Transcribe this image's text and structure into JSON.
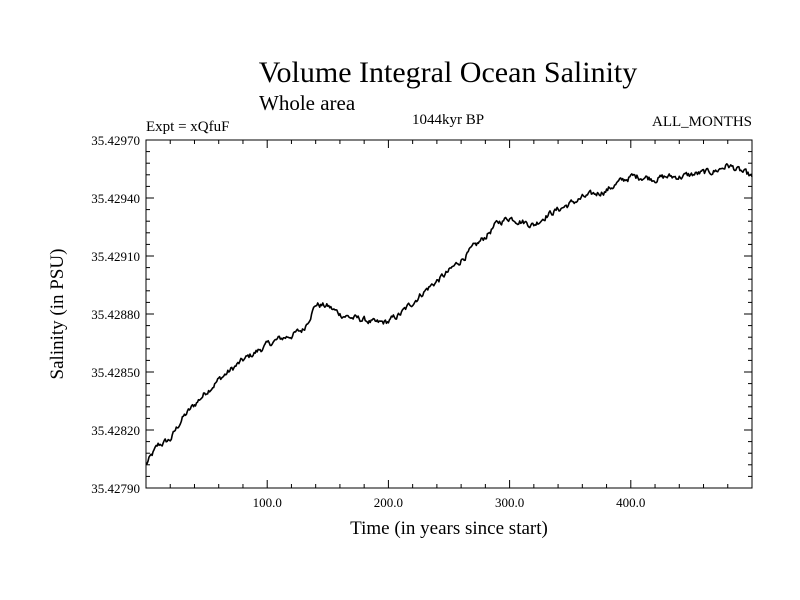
{
  "chart_data": {
    "type": "line",
    "title": "Volume Integral Ocean Salinity",
    "subtitle": "Whole area",
    "experiment": "Expt = xQfuF",
    "period": "1044kyr BP",
    "months": "ALL_MONTHS",
    "xlabel": "Time (in years since start)",
    "ylabel": "Salinity (in PSU)",
    "xlim": [
      0,
      500
    ],
    "ylim": [
      35.4279,
      35.4297
    ],
    "x_ticks": [
      {
        "value": 100,
        "label": "100.0"
      },
      {
        "value": 200,
        "label": "200.0"
      },
      {
        "value": 300,
        "label": "300.0"
      },
      {
        "value": 400,
        "label": "400.0"
      }
    ],
    "y_ticks": [
      {
        "value": 35.4279,
        "label": "35.42790"
      },
      {
        "value": 35.4282,
        "label": "35.42820"
      },
      {
        "value": 35.4285,
        "label": "35.42850"
      },
      {
        "value": 35.4288,
        "label": "35.42880"
      },
      {
        "value": 35.4291,
        "label": "35.42910"
      },
      {
        "value": 35.4294,
        "label": "35.42940"
      },
      {
        "value": 35.4297,
        "label": "35.42970"
      }
    ],
    "series": [
      {
        "name": "salinity",
        "x": [
          0,
          10,
          20,
          30,
          40,
          50,
          60,
          70,
          80,
          90,
          100,
          110,
          120,
          130,
          140,
          150,
          160,
          170,
          180,
          190,
          200,
          210,
          220,
          230,
          240,
          250,
          260,
          270,
          280,
          290,
          300,
          310,
          320,
          330,
          340,
          350,
          360,
          370,
          380,
          390,
          400,
          410,
          420,
          430,
          440,
          450,
          460,
          470,
          480,
          490,
          500
        ],
        "values": [
          35.42802,
          35.42812,
          35.42815,
          35.42826,
          35.42833,
          35.4284,
          35.42846,
          35.42851,
          35.42856,
          35.4286,
          35.42864,
          35.42867,
          35.42869,
          35.42872,
          35.42885,
          35.42884,
          35.4288,
          35.42878,
          35.42877,
          35.42875,
          35.42876,
          35.4288,
          35.42886,
          35.42892,
          35.42897,
          35.42902,
          35.42908,
          35.42914,
          35.4292,
          35.42927,
          35.4293,
          35.42928,
          35.42926,
          35.42931,
          35.42934,
          35.42937,
          35.4294,
          35.42942,
          35.42944,
          35.42948,
          35.42951,
          35.42951,
          35.4295,
          35.42951,
          35.42951,
          35.42952,
          35.42953,
          35.42954,
          35.42957,
          35.42954,
          35.42951
        ]
      }
    ]
  }
}
